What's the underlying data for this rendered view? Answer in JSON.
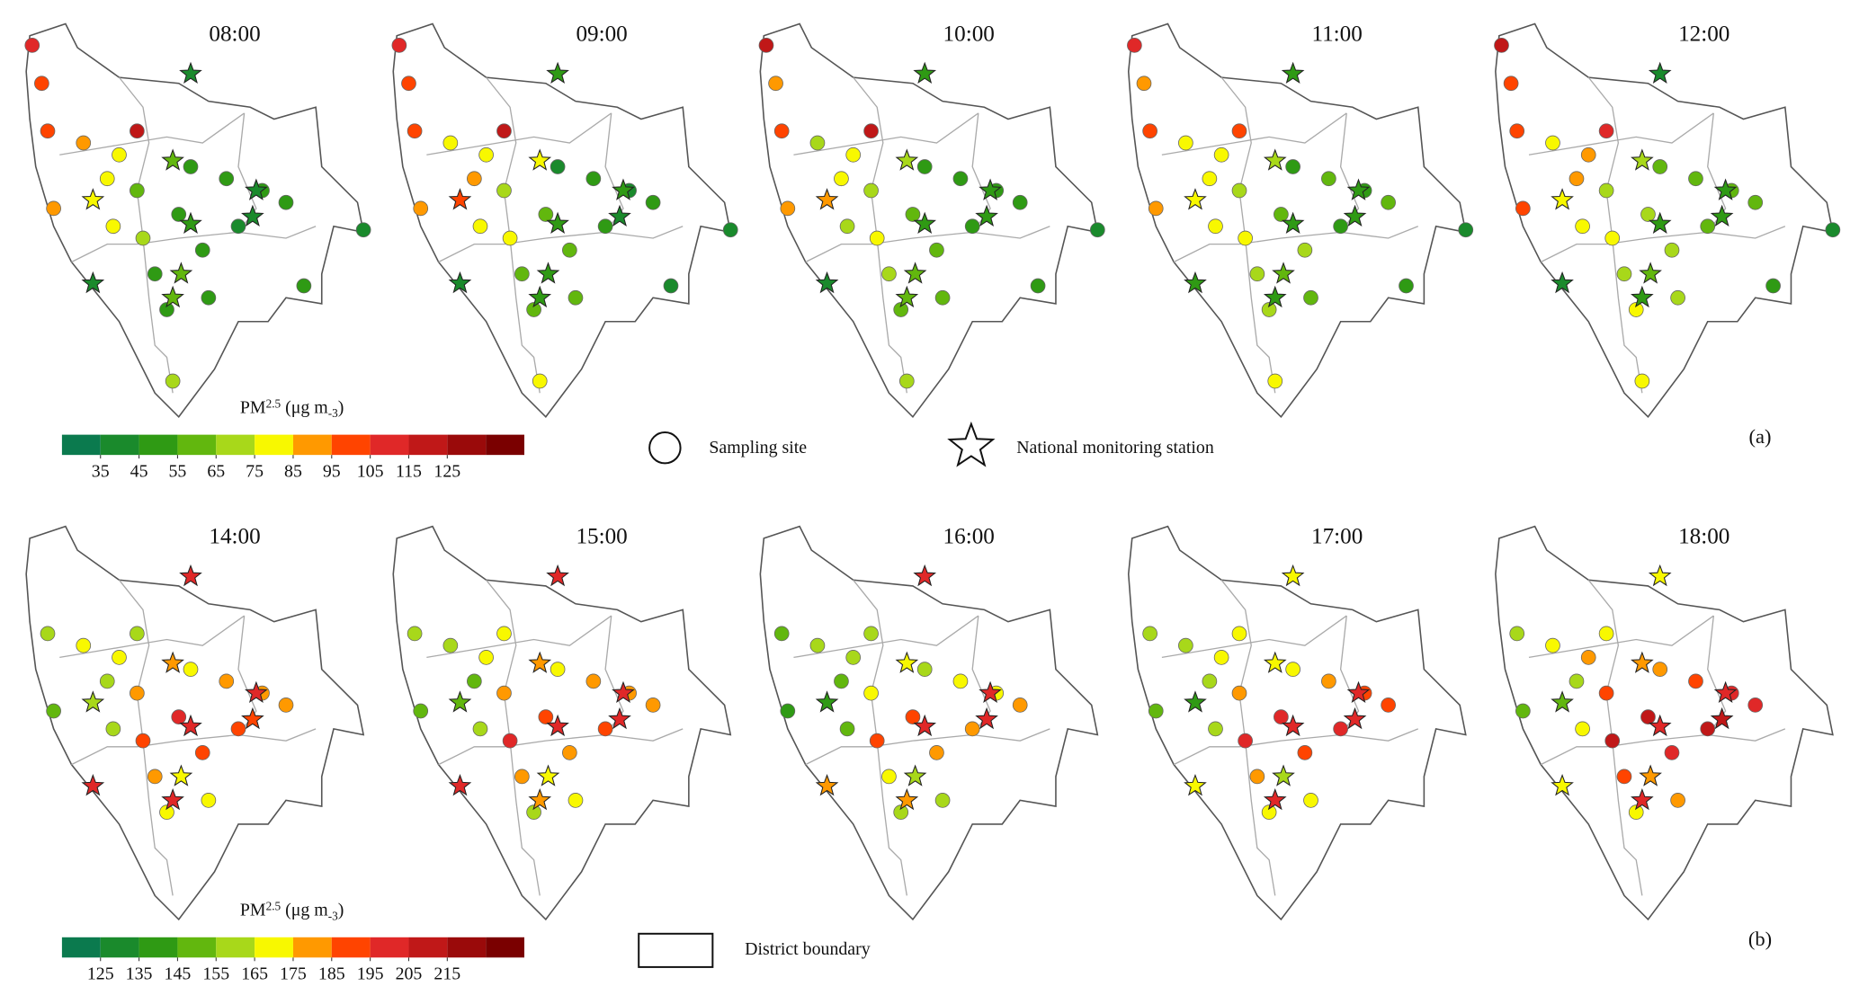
{
  "rows": [
    {
      "label": "(a)",
      "colorbar": {
        "title": "PM",
        "title_sub": "2.5",
        "unit": " (μg m",
        "unit_sup": "-3",
        "unit_end": ")",
        "colors": [
          "#0b7a4e",
          "#1a8a2c",
          "#2f9a14",
          "#62b70e",
          "#a8d81a",
          "#f8f800",
          "#ff9900",
          "#ff4400",
          "#e02828",
          "#c01818",
          "#9a0a0a",
          "#7a0000"
        ],
        "ticks": [
          35,
          45,
          55,
          65,
          75,
          85,
          95,
          105,
          115,
          125
        ]
      },
      "panels": [
        {
          "time": "08:00",
          "sites": [
            110,
            95,
            100,
            90,
            85,
            80,
            75,
            75,
            60,
            65,
            50,
            45,
            65,
            50,
            45,
            45,
            50,
            45,
            40,
            45,
            50,
            45,
            40,
            115
          ],
          "stations": [
            35,
            60,
            40,
            75,
            45,
            40,
            55,
            60,
            35
          ]
        },
        {
          "time": "09:00",
          "sites": [
            110,
            95,
            95,
            85,
            80,
            85,
            75,
            80,
            70,
            75,
            60,
            60,
            75,
            55,
            40,
            55,
            55,
            45,
            45,
            40,
            45,
            40,
            40,
            120
          ],
          "stations": [
            45,
            75,
            45,
            95,
            45,
            40,
            50,
            50,
            40
          ]
        },
        {
          "time": "10:00",
          "sites": [
            115,
            90,
            100,
            85,
            70,
            80,
            70,
            75,
            65,
            75,
            65,
            60,
            70,
            55,
            45,
            60,
            55,
            50,
            45,
            45,
            50,
            45,
            40,
            115
          ],
          "stations": [
            50,
            70,
            50,
            90,
            45,
            50,
            55,
            60,
            40
          ]
        },
        {
          "time": "11:00",
          "sites": [
            110,
            90,
            95,
            90,
            75,
            80,
            75,
            80,
            70,
            75,
            65,
            65,
            75,
            60,
            50,
            65,
            60,
            55,
            50,
            50,
            55,
            45,
            40,
            100
          ],
          "stations": [
            45,
            70,
            50,
            80,
            50,
            45,
            55,
            50,
            45
          ]
        },
        {
          "time": "12:00",
          "sites": [
            115,
            95,
            100,
            95,
            80,
            85,
            80,
            90,
            70,
            80,
            70,
            80,
            80,
            65,
            55,
            65,
            65,
            60,
            55,
            55,
            60,
            45,
            40,
            105
          ],
          "stations": [
            40,
            70,
            45,
            80,
            50,
            45,
            55,
            50,
            40
          ]
        }
      ]
    },
    {
      "label": "(b)",
      "colorbar": {
        "title": "PM",
        "title_sub": "2.5",
        "unit": " (μg m",
        "unit_sup": "-3",
        "unit_end": ")",
        "colors": [
          "#0b7a4e",
          "#1a8a2c",
          "#2f9a14",
          "#62b70e",
          "#a8d81a",
          "#f8f800",
          "#ff9900",
          "#ff4400",
          "#e02828",
          "#c01818",
          "#9a0a0a",
          "#7a0000"
        ],
        "ticks": [
          125,
          135,
          145,
          155,
          165,
          175,
          185,
          195,
          205,
          215
        ]
      },
      "panels": [
        {
          "time": "14:00",
          "sites": [
            null,
            null,
            160,
            150,
            165,
            155,
            160,
            170,
            175,
            190,
            180,
            165,
            null,
            195,
            170,
            185,
            170,
            175,
            185,
            180,
            175,
            null,
            null,
            160
          ],
          "stations": [
            195,
            175,
            195,
            155,
            195,
            190,
            165,
            195,
            195
          ]
        },
        {
          "time": "15:00",
          "sites": [
            null,
            null,
            160,
            145,
            160,
            150,
            155,
            165,
            175,
            195,
            175,
            160,
            null,
            190,
            170,
            180,
            165,
            175,
            185,
            180,
            180,
            null,
            null,
            165
          ],
          "stations": [
            195,
            175,
            195,
            150,
            195,
            195,
            165,
            175,
            195
          ]
        },
        {
          "time": "16:00",
          "sites": [
            null,
            null,
            150,
            140,
            155,
            145,
            150,
            160,
            170,
            185,
            165,
            155,
            null,
            185,
            160,
            175,
            160,
            165,
            175,
            170,
            175,
            null,
            null,
            155
          ],
          "stations": [
            195,
            165,
            195,
            140,
            195,
            195,
            160,
            175,
            180
          ]
        },
        {
          "time": "17:00",
          "sites": [
            null,
            null,
            155,
            145,
            160,
            155,
            160,
            165,
            175,
            195,
            180,
            165,
            null,
            200,
            170,
            190,
            165,
            180,
            195,
            185,
            190,
            null,
            null,
            165
          ],
          "stations": [
            165,
            165,
            200,
            140,
            195,
            200,
            160,
            195,
            165
          ]
        },
        {
          "time": "18:00",
          "sites": [
            null,
            null,
            160,
            150,
            165,
            160,
            165,
            175,
            185,
            205,
            190,
            170,
            null,
            210,
            180,
            195,
            175,
            190,
            205,
            195,
            200,
            null,
            null,
            170
          ],
          "stations": [
            165,
            175,
            200,
            145,
            200,
            205,
            175,
            200,
            165
          ]
        }
      ]
    }
  ],
  "legend": {
    "site": "Sampling site",
    "station": "National monitoring station",
    "boundary": "District boundary"
  }
}
